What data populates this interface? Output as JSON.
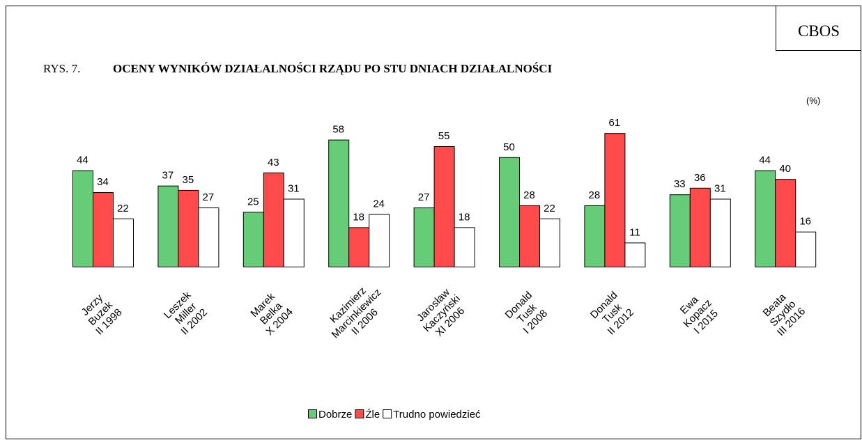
{
  "chart_data": {
    "type": "bar",
    "source": "CBOS",
    "figure_label": "RYS. 7.",
    "title": "OCENY WYNIKÓW DZIAŁALNOŚCI RZĄDU PO STU DNIACH DZIAŁALNOŚCI",
    "unit_label": "(%)",
    "categories": [
      [
        "Jerzy",
        "Buzek",
        "II 1998"
      ],
      [
        "Leszek",
        "Miller",
        "II 2002"
      ],
      [
        "Marek",
        "Belka",
        "X 2004"
      ],
      [
        "Kazimierz",
        "Marcinkiewicz",
        "II 2006"
      ],
      [
        "Jarosław",
        "Kaczyński",
        "XI 2006"
      ],
      [
        "Donald",
        "Tusk",
        "I 2008"
      ],
      [
        "Donald",
        "Tusk",
        "II 2012"
      ],
      [
        "Ewa",
        "Kopacz",
        "I 2015"
      ],
      [
        "Beata",
        "Szydło",
        "III 2016"
      ]
    ],
    "series": [
      {
        "name": "Dobrze",
        "color": "#66cc77",
        "values": [
          44,
          37,
          25,
          58,
          27,
          50,
          28,
          33,
          44
        ]
      },
      {
        "name": "Źle",
        "color": "#ff4b4b",
        "values": [
          34,
          35,
          43,
          18,
          55,
          28,
          61,
          36,
          40
        ]
      },
      {
        "name": "Trudno powiedzieć",
        "color": "#ffffff",
        "values": [
          22,
          27,
          31,
          24,
          18,
          22,
          11,
          31,
          16
        ]
      }
    ],
    "legend": "bottom"
  }
}
